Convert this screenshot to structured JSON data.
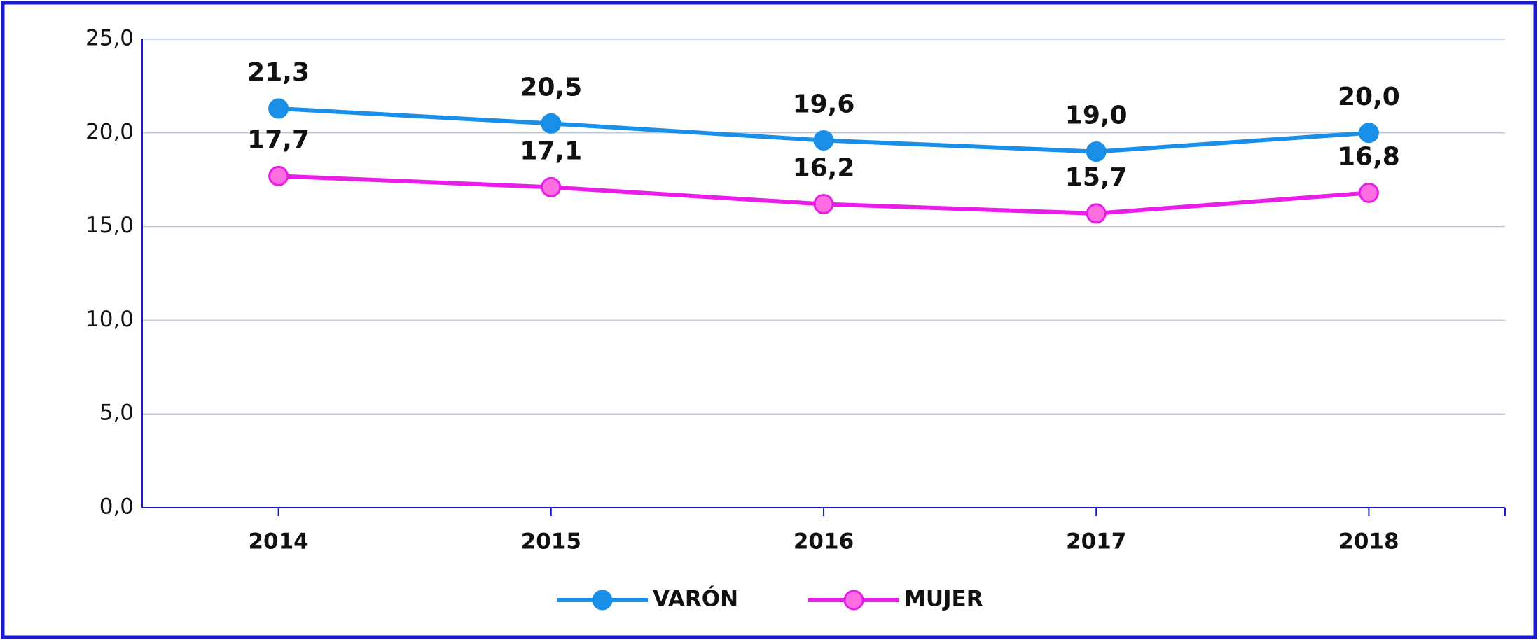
{
  "chart_data": {
    "type": "line",
    "categories": [
      "2014",
      "2015",
      "2016",
      "2017",
      "2018"
    ],
    "series": [
      {
        "name": "VARÓN",
        "color": "#1a8fe8",
        "values": [
          21.3,
          20.5,
          19.6,
          19.0,
          20.0
        ],
        "value_labels": [
          "21,3",
          "20,5",
          "19,6",
          "19,0",
          "20,0"
        ]
      },
      {
        "name": "MUJER",
        "color": "#e81ee8",
        "values": [
          17.7,
          17.1,
          16.2,
          15.7,
          16.8
        ],
        "value_labels": [
          "17,7",
          "17,1",
          "16,2",
          "15,7",
          "16,8"
        ]
      }
    ],
    "ylim": [
      0,
      25
    ],
    "yticks": [
      {
        "value": 0,
        "label": "0,0"
      },
      {
        "value": 5,
        "label": "5,0"
      },
      {
        "value": 10,
        "label": "10,0"
      },
      {
        "value": 15,
        "label": "15,0"
      },
      {
        "value": 20,
        "label": "20,0"
      },
      {
        "value": 25,
        "label": "25,0"
      }
    ],
    "grid": true,
    "legend": "bottom"
  }
}
